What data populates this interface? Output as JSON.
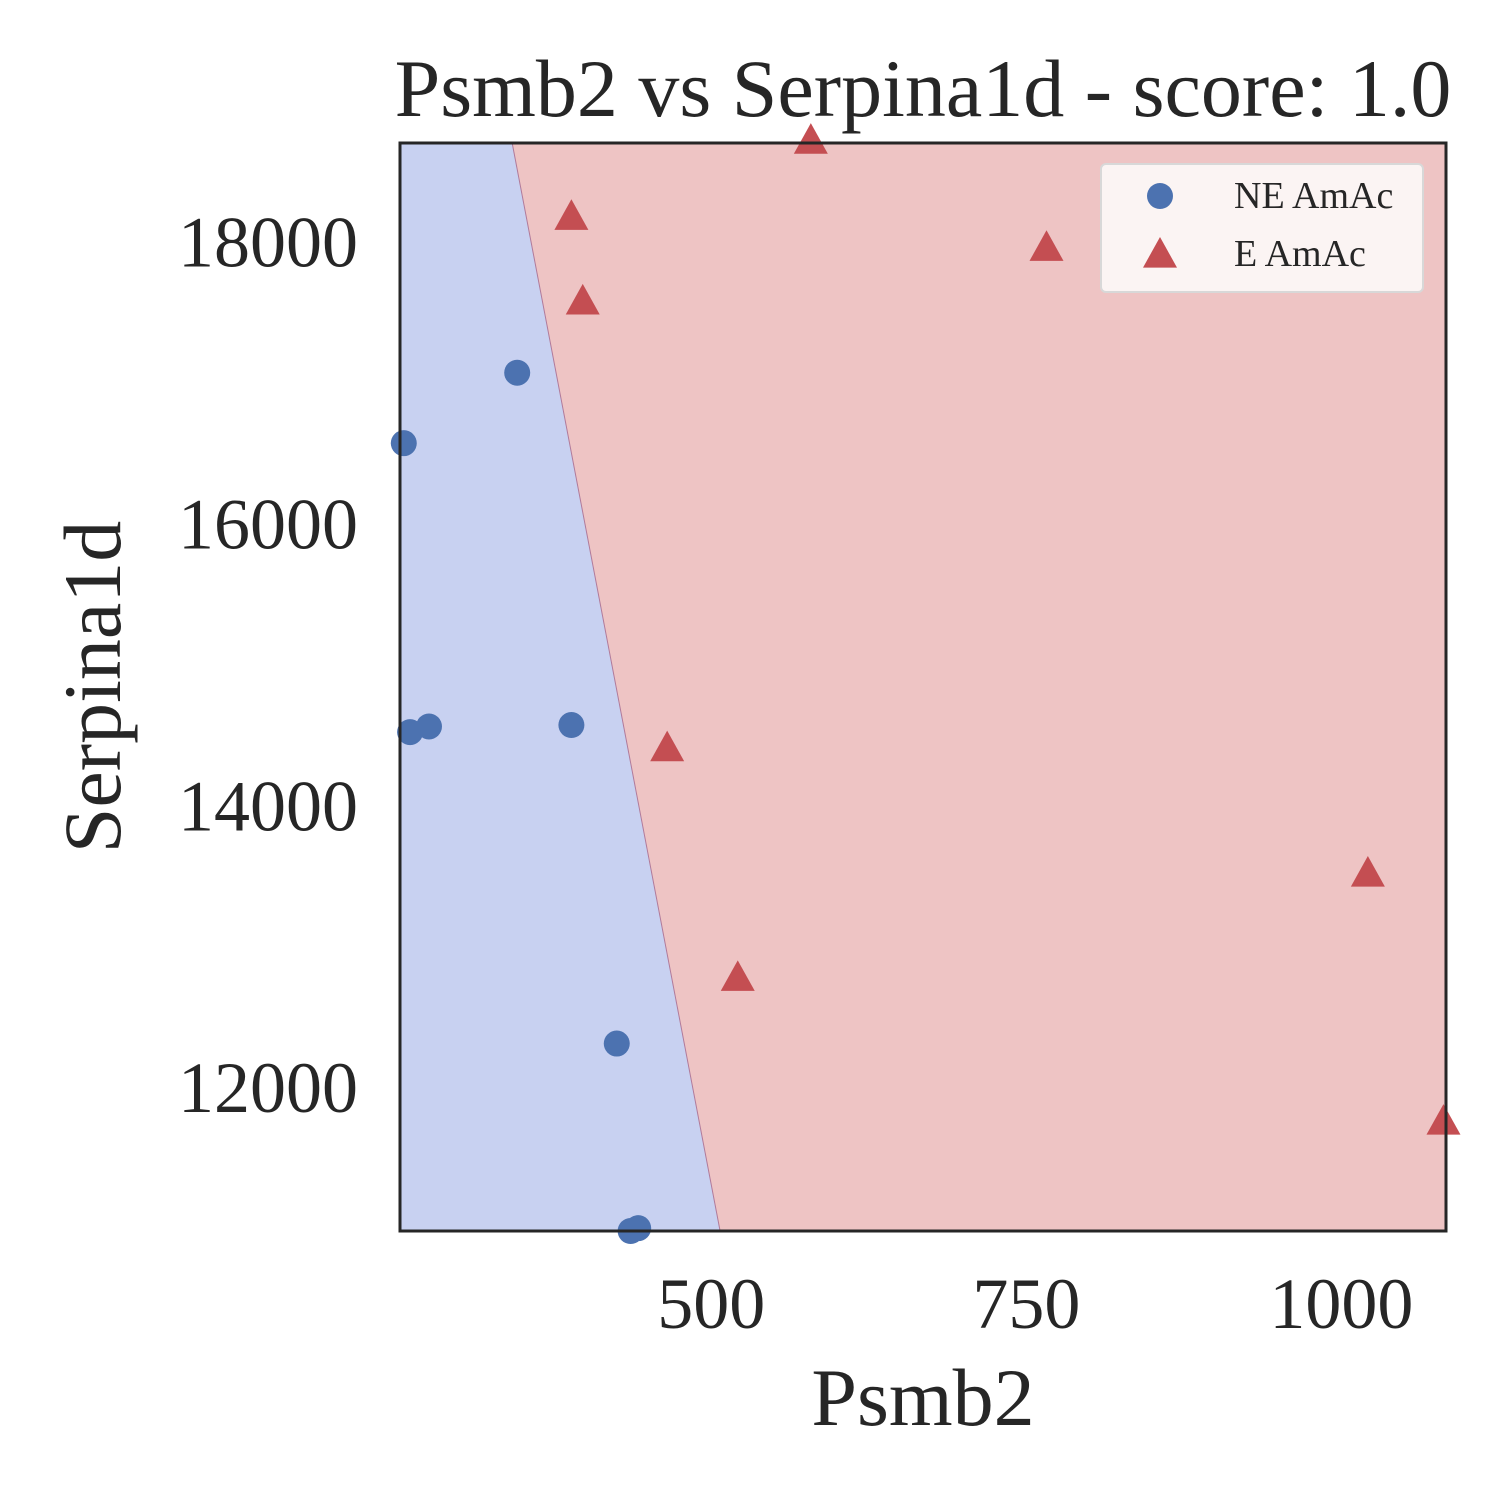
{
  "chart_data": {
    "type": "scatter",
    "title": "Psmb2 vs Serpina1d - score: 1.0",
    "xlabel": "Psmb2",
    "ylabel": "Serpina1d",
    "xlim": [
      253,
      1083
    ],
    "ylim": [
      10980,
      18700
    ],
    "xticks": [
      500,
      750,
      1000
    ],
    "xtick_labels": [
      "500",
      "750",
      "1000"
    ],
    "yticks": [
      12000,
      14000,
      16000,
      18000
    ],
    "ytick_labels": [
      "12000",
      "14000",
      "16000",
      "18000"
    ],
    "grid": false,
    "legend_position": "top-right",
    "decision_boundary": {
      "points": [
        [
          342,
          18700
        ],
        [
          507,
          10980
        ]
      ],
      "left_region_color": "#c8d1f1",
      "right_region_color": "#eec4c4"
    },
    "series": [
      {
        "name": "NE AmAc",
        "marker": "circle",
        "color": "#4c72b0",
        "points": [
          [
            256,
            16570
          ],
          [
            261,
            14520
          ],
          [
            276,
            14560
          ],
          [
            346,
            17070
          ],
          [
            389,
            14570
          ],
          [
            425,
            12310
          ],
          [
            436,
            10980
          ],
          [
            442,
            11000
          ]
        ]
      },
      {
        "name": "E AmAc",
        "marker": "triangle",
        "color": "#c44e52",
        "points": [
          [
            579,
            18720
          ],
          [
            389,
            18180
          ],
          [
            398,
            17580
          ],
          [
            465,
            14410
          ],
          [
            521,
            12780
          ],
          [
            766,
            17960
          ],
          [
            1021,
            13520
          ],
          [
            1081,
            11760
          ]
        ]
      }
    ]
  }
}
